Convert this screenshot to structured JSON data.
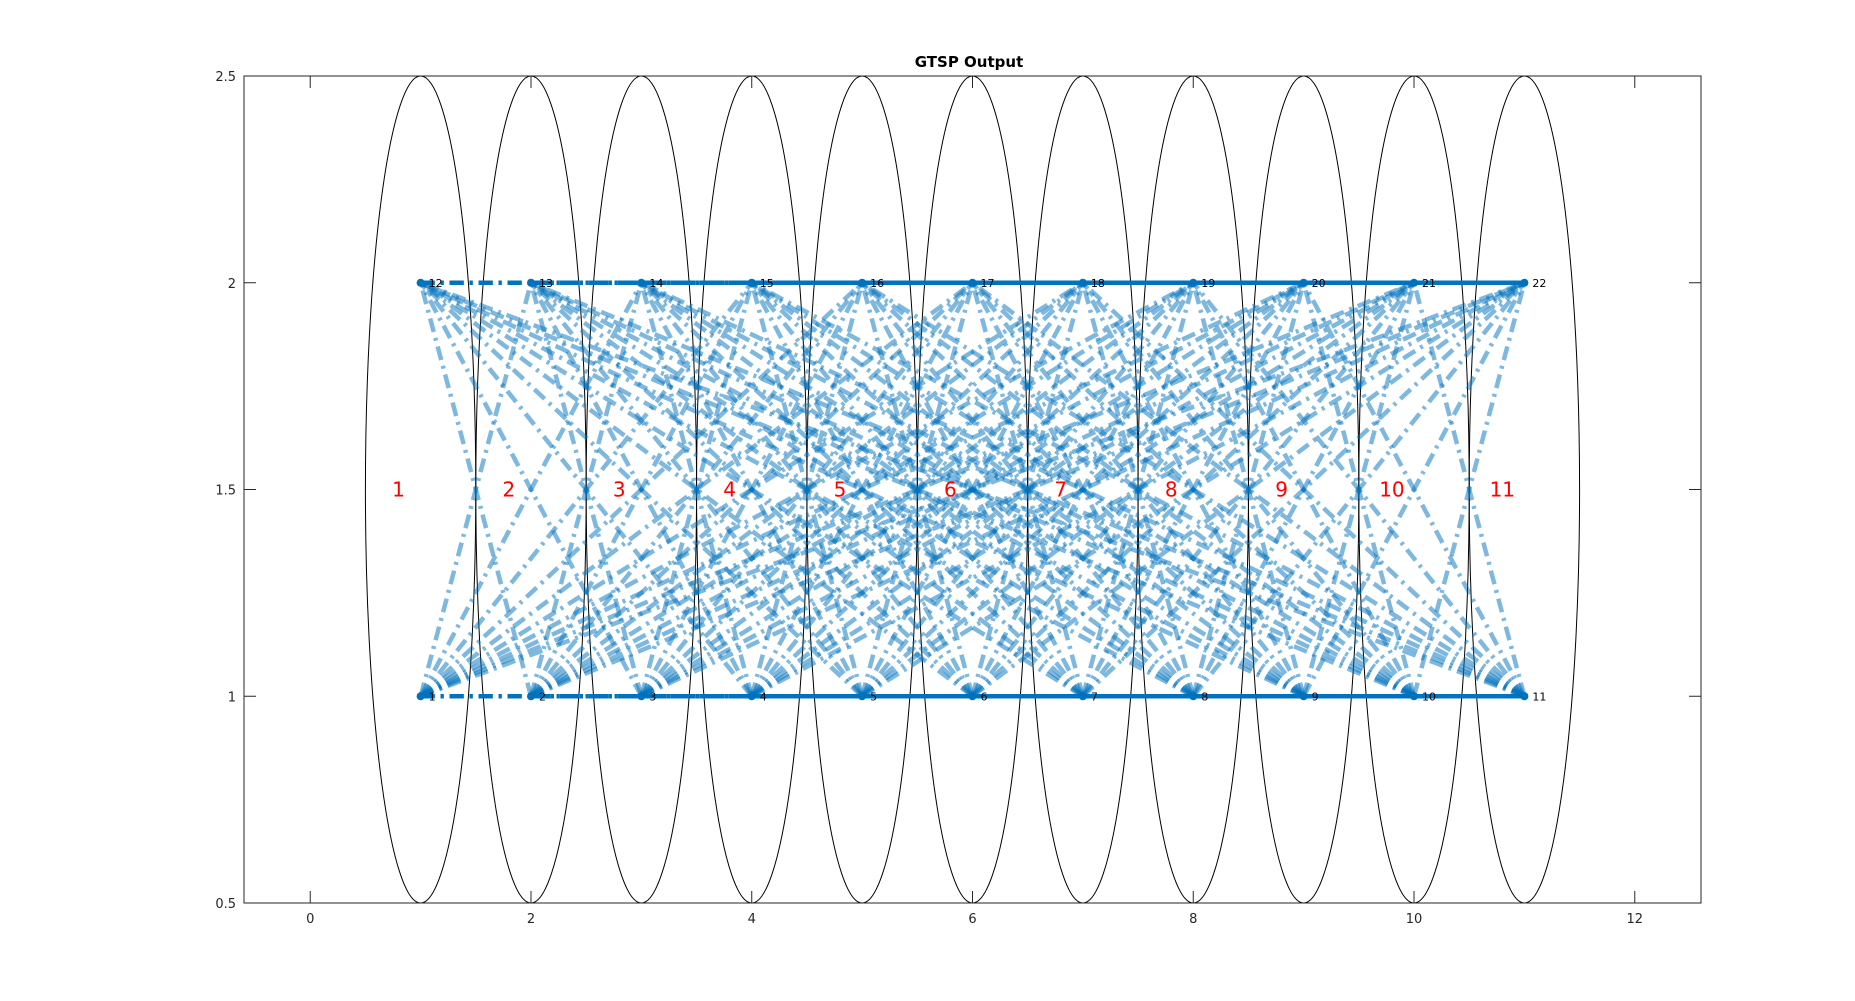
{
  "chart_data": {
    "type": "scatter",
    "title": "GTSP Output",
    "xlabel": "",
    "ylabel": "",
    "xlim": [
      -0.6,
      12.6
    ],
    "ylim": [
      0.5,
      2.5
    ],
    "grid": false,
    "xticks": [
      0,
      2,
      4,
      6,
      8,
      10,
      12
    ],
    "xtick_labels": [
      "0",
      "2",
      "4",
      "6",
      "8",
      "10",
      "12"
    ],
    "yticks": [
      0.5,
      1,
      1.5,
      2,
      2.5
    ],
    "ytick_labels": [
      "0.5",
      "1",
      "1.5",
      "2",
      "2.5"
    ],
    "nodes": [
      {
        "id": "1",
        "x": 1,
        "y": 1
      },
      {
        "id": "2",
        "x": 2,
        "y": 1
      },
      {
        "id": "3",
        "x": 3,
        "y": 1
      },
      {
        "id": "4",
        "x": 4,
        "y": 1
      },
      {
        "id": "5",
        "x": 5,
        "y": 1
      },
      {
        "id": "6",
        "x": 6,
        "y": 1
      },
      {
        "id": "7",
        "x": 7,
        "y": 1
      },
      {
        "id": "8",
        "x": 8,
        "y": 1
      },
      {
        "id": "9",
        "x": 9,
        "y": 1
      },
      {
        "id": "10",
        "x": 10,
        "y": 1
      },
      {
        "id": "11",
        "x": 11,
        "y": 1
      },
      {
        "id": "12",
        "x": 1,
        "y": 2
      },
      {
        "id": "13",
        "x": 2,
        "y": 2
      },
      {
        "id": "14",
        "x": 3,
        "y": 2
      },
      {
        "id": "15",
        "x": 4,
        "y": 2
      },
      {
        "id": "16",
        "x": 5,
        "y": 2
      },
      {
        "id": "17",
        "x": 6,
        "y": 2
      },
      {
        "id": "18",
        "x": 7,
        "y": 2
      },
      {
        "id": "19",
        "x": 8,
        "y": 2
      },
      {
        "id": "20",
        "x": 9,
        "y": 2
      },
      {
        "id": "21",
        "x": 10,
        "y": 2
      },
      {
        "id": "22",
        "x": 11,
        "y": 2
      }
    ],
    "clusters": [
      {
        "label": "1",
        "center_x": 1,
        "center_y": 1.5,
        "radius_x": 0.5,
        "radius_y": 1,
        "label_x": 0.8,
        "label_y": 1.5
      },
      {
        "label": "2",
        "center_x": 2,
        "center_y": 1.5,
        "radius_x": 0.5,
        "radius_y": 1,
        "label_x": 1.8,
        "label_y": 1.5
      },
      {
        "label": "3",
        "center_x": 3,
        "center_y": 1.5,
        "radius_x": 0.5,
        "radius_y": 1,
        "label_x": 2.8,
        "label_y": 1.5
      },
      {
        "label": "4",
        "center_x": 4,
        "center_y": 1.5,
        "radius_x": 0.5,
        "radius_y": 1,
        "label_x": 3.8,
        "label_y": 1.5
      },
      {
        "label": "5",
        "center_x": 5,
        "center_y": 1.5,
        "radius_x": 0.5,
        "radius_y": 1,
        "label_x": 4.8,
        "label_y": 1.5
      },
      {
        "label": "6",
        "center_x": 6,
        "center_y": 1.5,
        "radius_x": 0.5,
        "radius_y": 1,
        "label_x": 5.8,
        "label_y": 1.5
      },
      {
        "label": "7",
        "center_x": 7,
        "center_y": 1.5,
        "radius_x": 0.5,
        "radius_y": 1,
        "label_x": 6.8,
        "label_y": 1.5
      },
      {
        "label": "8",
        "center_x": 8,
        "center_y": 1.5,
        "radius_x": 0.5,
        "radius_y": 1,
        "label_x": 7.8,
        "label_y": 1.5
      },
      {
        "label": "9",
        "center_x": 9,
        "center_y": 1.5,
        "radius_x": 0.5,
        "radius_y": 1,
        "label_x": 8.8,
        "label_y": 1.5
      },
      {
        "label": "10",
        "center_x": 10,
        "center_y": 1.5,
        "radius_x": 0.5,
        "radius_y": 1,
        "label_x": 9.8,
        "label_y": 1.5
      },
      {
        "label": "11",
        "center_x": 11,
        "center_y": 1.5,
        "radius_x": 0.5,
        "radius_y": 1,
        "label_x": 10.8,
        "label_y": 1.5
      }
    ],
    "edges": "all node pairs from different clusters",
    "edge_style": "dash-dot",
    "colors": {
      "edge": "#0072bd",
      "node": "#0072bd",
      "ellipse": "#000000",
      "cluster_label": "#ff0000",
      "axes": "#262626"
    }
  }
}
